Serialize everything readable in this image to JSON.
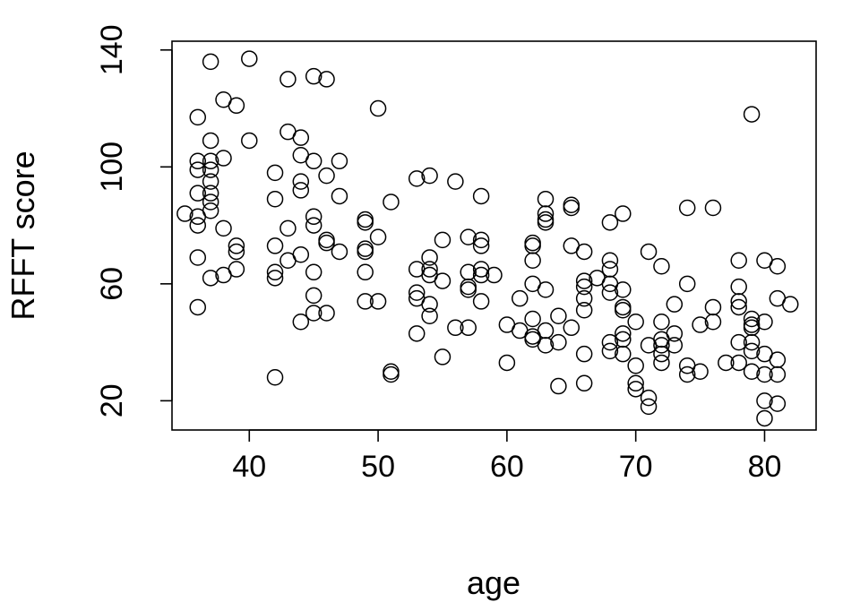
{
  "chart_data": {
    "type": "scatter",
    "title": "",
    "xlabel": "age",
    "ylabel": "RFFT score",
    "xlim": [
      34,
      84
    ],
    "ylim": [
      10,
      143
    ],
    "x_ticks": [
      40,
      50,
      60,
      70,
      80
    ],
    "y_ticks": [
      20,
      60,
      100,
      140
    ],
    "grid": false,
    "marker": "open-circle",
    "points": [
      {
        "x": 35,
        "y": 84
      },
      {
        "x": 36,
        "y": 117
      },
      {
        "x": 36,
        "y": 102
      },
      {
        "x": 36,
        "y": 99
      },
      {
        "x": 36,
        "y": 91
      },
      {
        "x": 36,
        "y": 83
      },
      {
        "x": 36,
        "y": 80
      },
      {
        "x": 36,
        "y": 69
      },
      {
        "x": 36,
        "y": 52
      },
      {
        "x": 37,
        "y": 136
      },
      {
        "x": 37,
        "y": 109
      },
      {
        "x": 37,
        "y": 102
      },
      {
        "x": 37,
        "y": 99
      },
      {
        "x": 37,
        "y": 95
      },
      {
        "x": 37,
        "y": 91
      },
      {
        "x": 37,
        "y": 88
      },
      {
        "x": 37,
        "y": 85
      },
      {
        "x": 37,
        "y": 62
      },
      {
        "x": 38,
        "y": 123
      },
      {
        "x": 38,
        "y": 103
      },
      {
        "x": 38,
        "y": 79
      },
      {
        "x": 38,
        "y": 63
      },
      {
        "x": 39,
        "y": 121
      },
      {
        "x": 39,
        "y": 73
      },
      {
        "x": 39,
        "y": 71
      },
      {
        "x": 39,
        "y": 65
      },
      {
        "x": 40,
        "y": 137
      },
      {
        "x": 40,
        "y": 109
      },
      {
        "x": 42,
        "y": 98
      },
      {
        "x": 42,
        "y": 89
      },
      {
        "x": 42,
        "y": 73
      },
      {
        "x": 42,
        "y": 64
      },
      {
        "x": 42,
        "y": 62
      },
      {
        "x": 42,
        "y": 28
      },
      {
        "x": 43,
        "y": 130
      },
      {
        "x": 43,
        "y": 112
      },
      {
        "x": 43,
        "y": 79
      },
      {
        "x": 43,
        "y": 68
      },
      {
        "x": 44,
        "y": 110
      },
      {
        "x": 44,
        "y": 104
      },
      {
        "x": 44,
        "y": 95
      },
      {
        "x": 44,
        "y": 92
      },
      {
        "x": 44,
        "y": 70
      },
      {
        "x": 44,
        "y": 47
      },
      {
        "x": 45,
        "y": 131
      },
      {
        "x": 45,
        "y": 102
      },
      {
        "x": 45,
        "y": 83
      },
      {
        "x": 45,
        "y": 80
      },
      {
        "x": 45,
        "y": 64
      },
      {
        "x": 45,
        "y": 56
      },
      {
        "x": 45,
        "y": 50
      },
      {
        "x": 46,
        "y": 130
      },
      {
        "x": 46,
        "y": 97
      },
      {
        "x": 46,
        "y": 75
      },
      {
        "x": 46,
        "y": 74
      },
      {
        "x": 46,
        "y": 50
      },
      {
        "x": 47,
        "y": 102
      },
      {
        "x": 47,
        "y": 90
      },
      {
        "x": 47,
        "y": 71
      },
      {
        "x": 49,
        "y": 82
      },
      {
        "x": 49,
        "y": 81
      },
      {
        "x": 49,
        "y": 72
      },
      {
        "x": 49,
        "y": 71
      },
      {
        "x": 49,
        "y": 64
      },
      {
        "x": 49,
        "y": 54
      },
      {
        "x": 50,
        "y": 120
      },
      {
        "x": 50,
        "y": 76
      },
      {
        "x": 50,
        "y": 54
      },
      {
        "x": 51,
        "y": 88
      },
      {
        "x": 51,
        "y": 30
      },
      {
        "x": 51,
        "y": 29
      },
      {
        "x": 53,
        "y": 96
      },
      {
        "x": 53,
        "y": 65
      },
      {
        "x": 53,
        "y": 57
      },
      {
        "x": 53,
        "y": 55
      },
      {
        "x": 53,
        "y": 43
      },
      {
        "x": 54,
        "y": 97
      },
      {
        "x": 54,
        "y": 69
      },
      {
        "x": 54,
        "y": 65
      },
      {
        "x": 54,
        "y": 63
      },
      {
        "x": 54,
        "y": 53
      },
      {
        "x": 54,
        "y": 49
      },
      {
        "x": 55,
        "y": 75
      },
      {
        "x": 55,
        "y": 61
      },
      {
        "x": 55,
        "y": 35
      },
      {
        "x": 56,
        "y": 95
      },
      {
        "x": 56,
        "y": 45
      },
      {
        "x": 57,
        "y": 76
      },
      {
        "x": 57,
        "y": 64
      },
      {
        "x": 57,
        "y": 59
      },
      {
        "x": 57,
        "y": 58
      },
      {
        "x": 57,
        "y": 45
      },
      {
        "x": 58,
        "y": 90
      },
      {
        "x": 58,
        "y": 75
      },
      {
        "x": 58,
        "y": 73
      },
      {
        "x": 58,
        "y": 65
      },
      {
        "x": 58,
        "y": 63
      },
      {
        "x": 58,
        "y": 54
      },
      {
        "x": 59,
        "y": 63
      },
      {
        "x": 60,
        "y": 46
      },
      {
        "x": 60,
        "y": 33
      },
      {
        "x": 61,
        "y": 55
      },
      {
        "x": 61,
        "y": 44
      },
      {
        "x": 62,
        "y": 74
      },
      {
        "x": 62,
        "y": 73
      },
      {
        "x": 62,
        "y": 68
      },
      {
        "x": 62,
        "y": 60
      },
      {
        "x": 62,
        "y": 48
      },
      {
        "x": 62,
        "y": 42
      },
      {
        "x": 62,
        "y": 41
      },
      {
        "x": 63,
        "y": 89
      },
      {
        "x": 63,
        "y": 84
      },
      {
        "x": 63,
        "y": 82
      },
      {
        "x": 63,
        "y": 81
      },
      {
        "x": 63,
        "y": 58
      },
      {
        "x": 63,
        "y": 44
      },
      {
        "x": 63,
        "y": 39
      },
      {
        "x": 64,
        "y": 49
      },
      {
        "x": 64,
        "y": 40
      },
      {
        "x": 64,
        "y": 25
      },
      {
        "x": 65,
        "y": 87
      },
      {
        "x": 65,
        "y": 86
      },
      {
        "x": 65,
        "y": 73
      },
      {
        "x": 65,
        "y": 45
      },
      {
        "x": 66,
        "y": 71
      },
      {
        "x": 66,
        "y": 61
      },
      {
        "x": 66,
        "y": 59
      },
      {
        "x": 66,
        "y": 55
      },
      {
        "x": 66,
        "y": 51
      },
      {
        "x": 66,
        "y": 36
      },
      {
        "x": 66,
        "y": 26
      },
      {
        "x": 67,
        "y": 62
      },
      {
        "x": 68,
        "y": 81
      },
      {
        "x": 68,
        "y": 68
      },
      {
        "x": 68,
        "y": 65
      },
      {
        "x": 68,
        "y": 60
      },
      {
        "x": 68,
        "y": 57
      },
      {
        "x": 68,
        "y": 40
      },
      {
        "x": 68,
        "y": 37
      },
      {
        "x": 69,
        "y": 84
      },
      {
        "x": 69,
        "y": 58
      },
      {
        "x": 69,
        "y": 52
      },
      {
        "x": 69,
        "y": 51
      },
      {
        "x": 69,
        "y": 43
      },
      {
        "x": 69,
        "y": 41
      },
      {
        "x": 69,
        "y": 36
      },
      {
        "x": 70,
        "y": 47
      },
      {
        "x": 70,
        "y": 32
      },
      {
        "x": 70,
        "y": 26
      },
      {
        "x": 70,
        "y": 24
      },
      {
        "x": 71,
        "y": 71
      },
      {
        "x": 71,
        "y": 39
      },
      {
        "x": 71,
        "y": 21
      },
      {
        "x": 71,
        "y": 18
      },
      {
        "x": 72,
        "y": 66
      },
      {
        "x": 72,
        "y": 47
      },
      {
        "x": 72,
        "y": 41
      },
      {
        "x": 72,
        "y": 39
      },
      {
        "x": 72,
        "y": 36
      },
      {
        "x": 72,
        "y": 33
      },
      {
        "x": 73,
        "y": 53
      },
      {
        "x": 73,
        "y": 43
      },
      {
        "x": 73,
        "y": 39
      },
      {
        "x": 74,
        "y": 86
      },
      {
        "x": 74,
        "y": 60
      },
      {
        "x": 74,
        "y": 32
      },
      {
        "x": 74,
        "y": 29
      },
      {
        "x": 75,
        "y": 46
      },
      {
        "x": 75,
        "y": 30
      },
      {
        "x": 76,
        "y": 86
      },
      {
        "x": 76,
        "y": 52
      },
      {
        "x": 76,
        "y": 47
      },
      {
        "x": 77,
        "y": 33
      },
      {
        "x": 78,
        "y": 68
      },
      {
        "x": 78,
        "y": 59
      },
      {
        "x": 78,
        "y": 54
      },
      {
        "x": 78,
        "y": 52
      },
      {
        "x": 78,
        "y": 40
      },
      {
        "x": 78,
        "y": 33
      },
      {
        "x": 79,
        "y": 118
      },
      {
        "x": 79,
        "y": 48
      },
      {
        "x": 79,
        "y": 46
      },
      {
        "x": 79,
        "y": 45
      },
      {
        "x": 79,
        "y": 40
      },
      {
        "x": 79,
        "y": 37
      },
      {
        "x": 79,
        "y": 30
      },
      {
        "x": 80,
        "y": 68
      },
      {
        "x": 80,
        "y": 47
      },
      {
        "x": 80,
        "y": 36
      },
      {
        "x": 80,
        "y": 29
      },
      {
        "x": 80,
        "y": 20
      },
      {
        "x": 80,
        "y": 14
      },
      {
        "x": 81,
        "y": 66
      },
      {
        "x": 81,
        "y": 55
      },
      {
        "x": 81,
        "y": 34
      },
      {
        "x": 81,
        "y": 29
      },
      {
        "x": 81,
        "y": 19
      },
      {
        "x": 82,
        "y": 53
      }
    ]
  }
}
